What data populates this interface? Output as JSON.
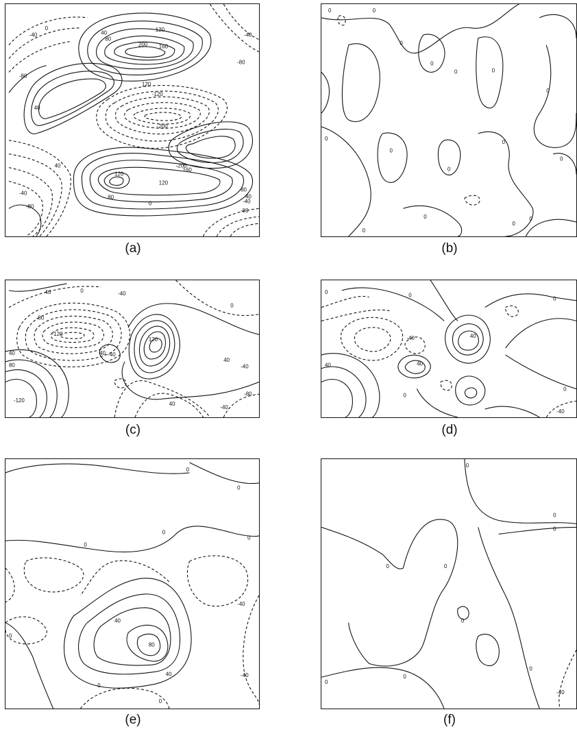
{
  "panels": [
    {
      "caption": "(a)",
      "labels": [
        "-40",
        "0",
        "40",
        "80",
        "120",
        "160",
        "200",
        "-80",
        "-120",
        "-200",
        "40",
        "120",
        "-40",
        "-80",
        "40",
        "80",
        "120",
        "0",
        "-40",
        "-80",
        "-200",
        "160",
        "120",
        "80",
        "40",
        "-40",
        "-80"
      ]
    },
    {
      "caption": "(b)",
      "labels": [
        "0",
        "0",
        "0",
        "0",
        "0",
        "0",
        "0",
        "0",
        "0",
        "0",
        "0",
        "0",
        "0",
        "0",
        "0",
        "0"
      ]
    },
    {
      "caption": "(c)",
      "labels": [
        "40",
        "0",
        "-40",
        "-80",
        "-120",
        "-40",
        "40",
        "80",
        "-120",
        "40",
        "120",
        "0",
        "40",
        "40",
        "-40",
        "-80",
        "-40"
      ]
    },
    {
      "caption": "(d)",
      "labels": [
        "0",
        "0",
        "0",
        "-40",
        "40",
        "40",
        "40",
        "0",
        "-40",
        "0"
      ]
    },
    {
      "caption": "(e)",
      "labels": [
        "0",
        "0",
        "0",
        "0",
        "0",
        "0",
        "-40",
        "40",
        "80",
        "40",
        "0",
        "0",
        "-40"
      ]
    },
    {
      "caption": "(f)",
      "labels": [
        "0",
        "0",
        "0",
        "0",
        "0",
        "0",
        "0",
        "0",
        "0",
        "-40"
      ]
    }
  ]
}
